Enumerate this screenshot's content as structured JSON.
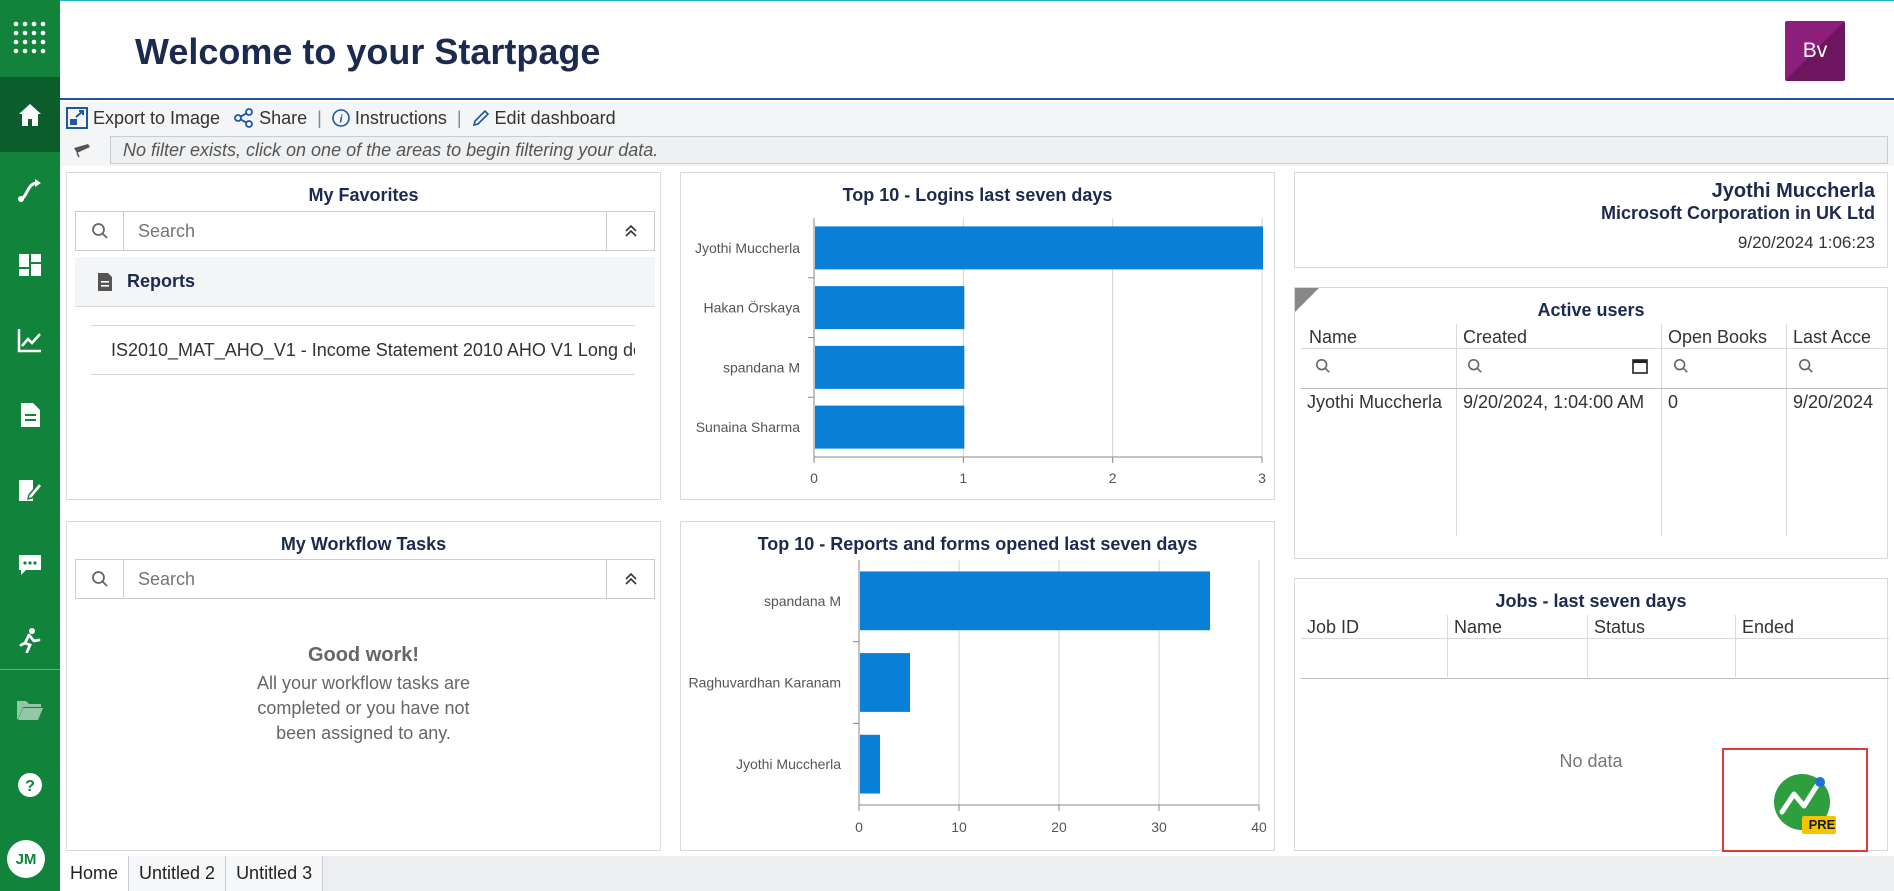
{
  "sidebar": {
    "items": [
      {
        "name": "apps-grid-icon"
      },
      {
        "name": "home-icon"
      },
      {
        "name": "workflow-icon"
      },
      {
        "name": "dashboard-icon"
      },
      {
        "name": "analytics-icon"
      },
      {
        "name": "report-icon"
      },
      {
        "name": "form-edit-icon"
      },
      {
        "name": "chat-icon"
      },
      {
        "name": "run-icon"
      },
      {
        "name": "folder-icon"
      },
      {
        "name": "help-icon"
      }
    ],
    "avatar": "JM"
  },
  "header": {
    "title": "Welcome to your Startpage",
    "brand": "Bv"
  },
  "toolbar": {
    "export": "Export to Image",
    "share": "Share",
    "instructions": "Instructions",
    "edit": "Edit dashboard"
  },
  "filter": {
    "text": "No filter exists, click on one of the areas to begin filtering your data."
  },
  "favorites": {
    "title": "My Favorites",
    "search_placeholder": "Search",
    "group": "Reports",
    "items": [
      "IS2010_MAT_AHO_V1 - Income Statement 2010 AHO V1 Long de"
    ]
  },
  "workflow": {
    "title": "My Workflow Tasks",
    "search_placeholder": "Search",
    "empty_title": "Good work!",
    "empty_line1": "All your workflow tasks are",
    "empty_line2": "completed or you have not",
    "empty_line3": "been assigned to any."
  },
  "chart_data": [
    {
      "type": "bar",
      "orientation": "horizontal",
      "title": "Top 10 - Logins last seven days",
      "categories": [
        "Jyothi Muccherla",
        "Hakan Örskaya",
        "spandana M",
        "Sunaina Sharma"
      ],
      "values": [
        3,
        1,
        1,
        1
      ],
      "xlim": [
        0,
        3
      ],
      "xticks": [
        0,
        1,
        2,
        3
      ],
      "grid": true,
      "color": "#0a7fd6"
    },
    {
      "type": "bar",
      "orientation": "horizontal",
      "title": "Top 10 - Reports and forms opened last seven days",
      "categories": [
        "spandana M",
        "Raghuvardhan Karanam",
        "Jyothi Muccherla"
      ],
      "values": [
        35,
        5,
        2
      ],
      "xlim": [
        0,
        40
      ],
      "xticks": [
        0,
        10,
        20,
        30,
        40
      ],
      "grid": true,
      "color": "#0a7fd6"
    }
  ],
  "user_info": {
    "name": "Jyothi Muccherla",
    "company": "Microsoft Corporation in UK Ltd",
    "datetime": "9/20/2024 1:06:23"
  },
  "active_users": {
    "title": "Active users",
    "columns": [
      "Name",
      "Created",
      "Open Books",
      "Last Acce"
    ],
    "rows": [
      [
        "Jyothi Muccherla",
        "9/20/2024, 1:04:00 AM",
        "0",
        "9/20/2024"
      ]
    ]
  },
  "jobs": {
    "title": "Jobs - last seven days",
    "columns": [
      "Job ID",
      "Name",
      "Status",
      "Ended"
    ],
    "empty": "No data"
  },
  "corner_badge": "PRE",
  "tabs": [
    "Home",
    "Untitled 2",
    "Untitled 3"
  ],
  "colors": {
    "sidebar": "#12833b",
    "bar": "#0a7fd6",
    "brand": "#8b1f7a",
    "title": "#1b2a4e"
  }
}
